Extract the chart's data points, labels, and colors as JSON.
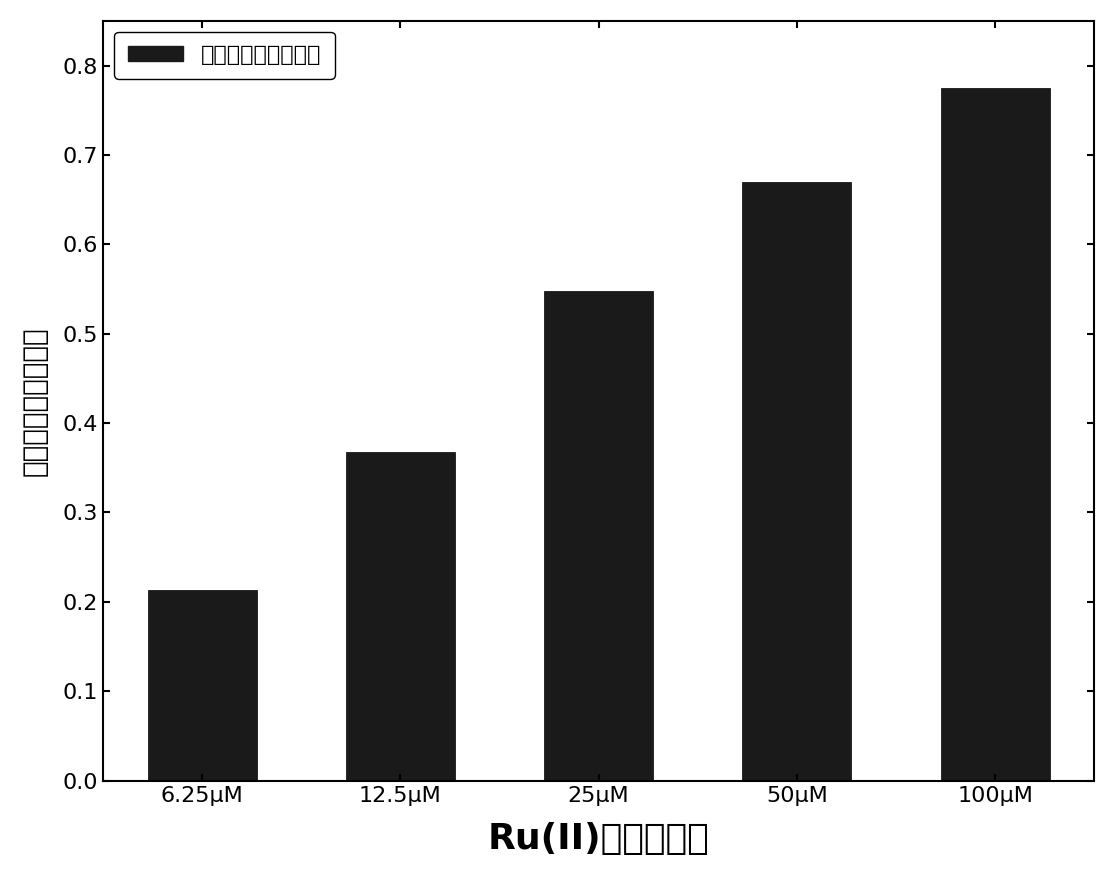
{
  "categories": [
    "6.25μM",
    "12.5μM",
    "25μM",
    "50μM",
    "100μM"
  ],
  "values": [
    0.213,
    0.368,
    0.548,
    0.67,
    0.775
  ],
  "bar_color": "#1a1a1a",
  "bar_edge_color": "#000000",
  "xlabel": "Ru(II)配合物浓度",
  "ylabel": "肝癌细胞生长抑制率",
  "legend_label": "肝癌细胞生长抑制率",
  "ylim": [
    0.0,
    0.85
  ],
  "yticks": [
    0.0,
    0.1,
    0.2,
    0.3,
    0.4,
    0.5,
    0.6,
    0.7,
    0.8
  ],
  "background_color": "#ffffff",
  "bar_width": 0.55,
  "xlabel_fontsize": 26,
  "ylabel_fontsize": 20,
  "tick_fontsize": 16,
  "legend_fontsize": 16
}
